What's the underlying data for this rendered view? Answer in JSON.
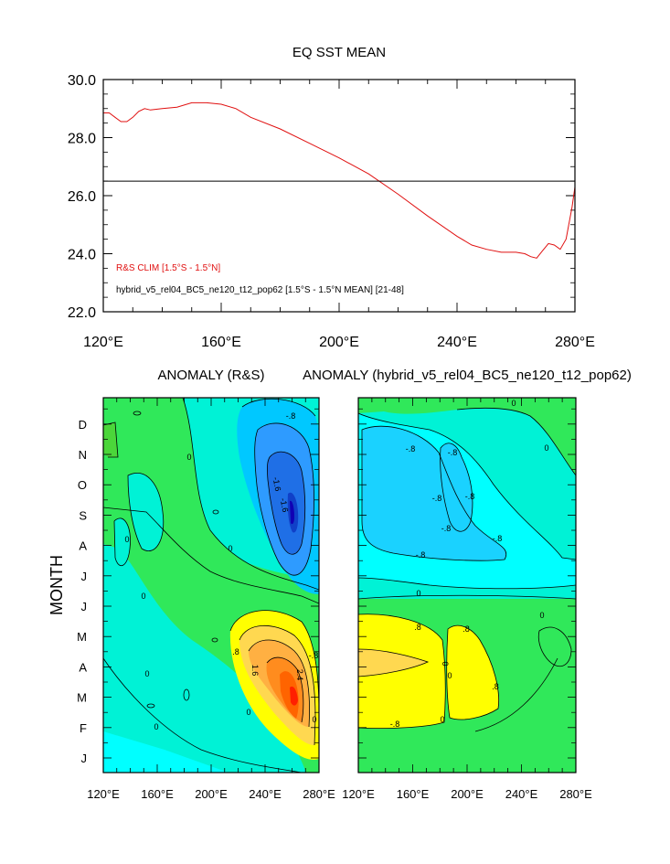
{
  "chart_data": [
    {
      "type": "line",
      "title": "EQ SST MEAN",
      "xlim": [
        120,
        280
      ],
      "ylim": [
        22,
        30
      ],
      "xticks": [
        "120°E",
        "160°E",
        "200°E",
        "240°E",
        "280°E"
      ],
      "yticks": [
        "22.0",
        "24.0",
        "26.0",
        "28.0",
        "30.0"
      ],
      "colors": {
        "rs": "#e01010",
        "model": "#000000"
      },
      "legend": [
        {
          "label": "R&S CLIM [1.5°S - 1.5°N]",
          "color": "#e01010"
        },
        {
          "label": "hybrid_v5_rel04_BC5_ne120_t12_pop62 [1.5°S - 1.5°N MEAN] [21-48]",
          "color": "#000000"
        }
      ],
      "series": [
        {
          "name": "R&S CLIM [1.5°S - 1.5°N]",
          "x": [
            120,
            122,
            124,
            126,
            128,
            130,
            132,
            134,
            136,
            140,
            145,
            150,
            155,
            160,
            165,
            170,
            180,
            190,
            200,
            210,
            220,
            230,
            240,
            245,
            250,
            255,
            260,
            263,
            265,
            267,
            269,
            271,
            273,
            275,
            277,
            279,
            280
          ],
          "y": [
            28.85,
            28.85,
            28.7,
            28.55,
            28.55,
            28.7,
            28.9,
            29.0,
            28.95,
            29.0,
            29.05,
            29.2,
            29.2,
            29.15,
            29.0,
            28.7,
            28.3,
            27.8,
            27.3,
            26.75,
            26.05,
            25.3,
            24.6,
            24.3,
            24.15,
            24.05,
            24.05,
            24.0,
            23.9,
            23.85,
            24.1,
            24.35,
            24.3,
            24.15,
            24.5,
            25.6,
            26.3
          ]
        },
        {
          "name": "hybrid_v5_rel04_BC5_ne120_t12_pop62 [1.5°S - 1.5°N MEAN] [21-48]",
          "x": [
            120,
            280
          ],
          "y": [
            26.5,
            26.5
          ]
        }
      ]
    },
    {
      "type": "heatmap",
      "title": "ANOMALY (R&S)",
      "xlim": [
        120,
        280
      ],
      "xticks": [
        "120°E",
        "160°E",
        "200°E",
        "240°E",
        "280°E"
      ],
      "yticks": [
        "J",
        "F",
        "M",
        "A",
        "M",
        "J",
        "J",
        "A",
        "S",
        "O",
        "N",
        "D"
      ],
      "ylabel": "MONTH",
      "contour_labels": [
        "-.8",
        "-1.6",
        "-1.6",
        "0",
        "0",
        "0",
        "0",
        "0",
        "0",
        "0",
        ".8",
        "1.6",
        "2.4",
        "0",
        "-.8"
      ]
    },
    {
      "type": "heatmap",
      "title": "ANOMALY (hybrid_v5_rel04_BC5_ne120_t12_pop62)",
      "xlim": [
        120,
        280
      ],
      "xticks": [
        "120°E",
        "160°E",
        "200°E",
        "240°E",
        "280°E"
      ],
      "contour_labels": [
        "0",
        "0",
        "-.8",
        "-.8",
        "-.8",
        "-.8",
        "-.8",
        "-.8",
        "-.8",
        "0",
        "0",
        ".8",
        ".8",
        "0",
        "0",
        "0",
        ".8",
        "-.8"
      ]
    }
  ]
}
